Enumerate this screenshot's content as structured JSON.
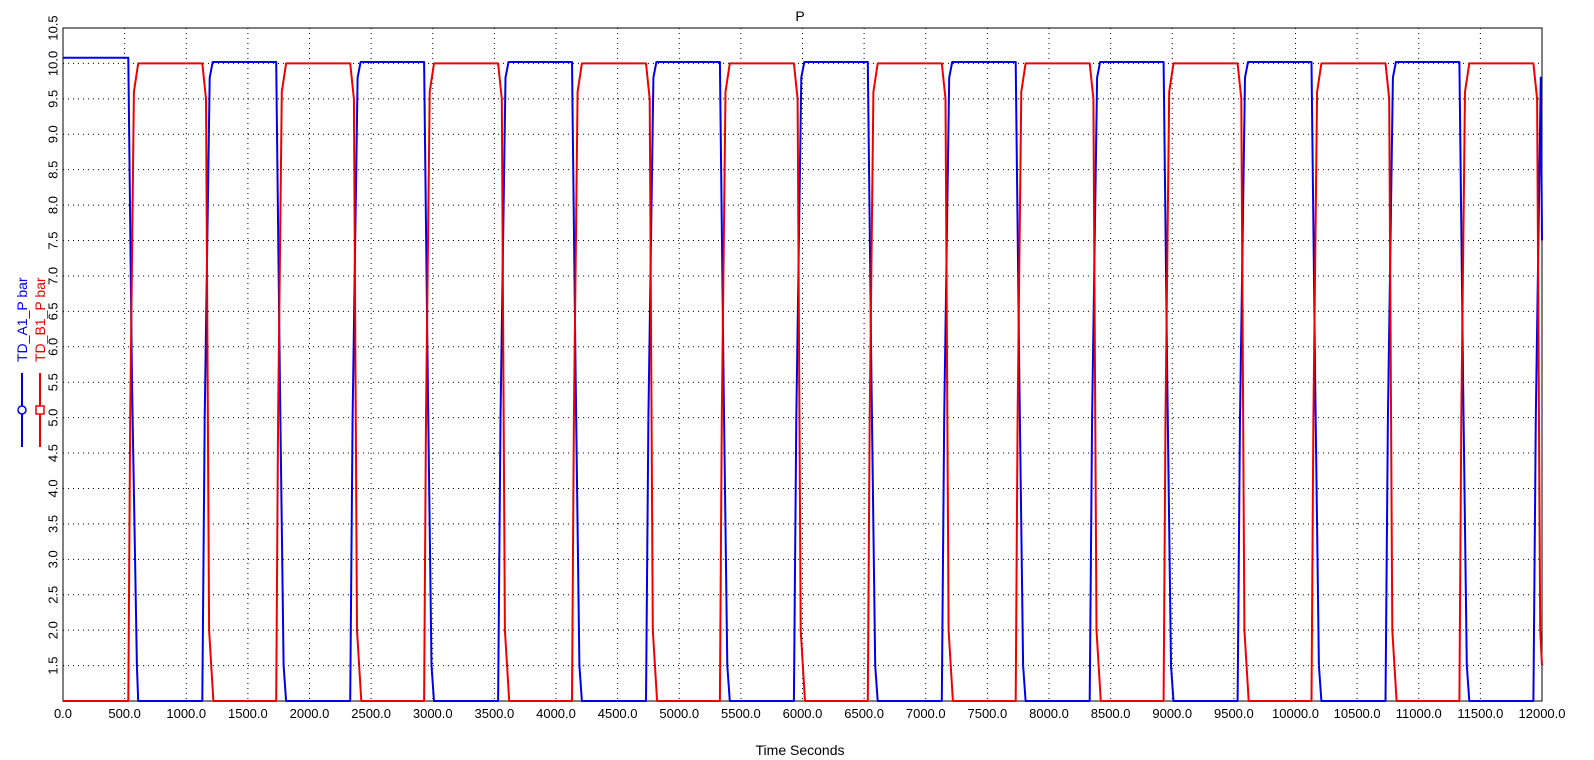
{
  "chart_data": {
    "type": "line",
    "title": "P",
    "xlabel": "Time Seconds",
    "xlim": [
      0,
      12000
    ],
    "ylim": [
      1.0,
      10.5
    ],
    "x_ticks": [
      "0.0",
      "500.0",
      "1000.0",
      "1500.0",
      "2000.0",
      "2500.0",
      "3000.0",
      "3500.0",
      "4000.0",
      "4500.0",
      "5000.0",
      "5500.0",
      "6000.0",
      "6500.0",
      "7000.0",
      "7500.0",
      "8000.0",
      "8500.0",
      "9000.0",
      "9500.0",
      "10000.0",
      "10500.0",
      "11000.0",
      "11500.0",
      "12000.0"
    ],
    "y_ticks": [
      "1.5",
      "2.0",
      "2.5",
      "3.0",
      "3.5",
      "4.0",
      "4.5",
      "5.0",
      "5.5",
      "6.0",
      "6.5",
      "7.0",
      "7.5",
      "8.0",
      "8.5",
      "9.0",
      "9.5",
      "10.0",
      "10.5"
    ],
    "grid": true,
    "legend_position": "left, rotated vertical",
    "series": [
      {
        "name": "TD_A1_P bar",
        "color": "#0000ee",
        "marker": "circle",
        "x": [
          0,
          530,
          560,
          600,
          610,
          1130,
          1150,
          1190,
          1215,
          1730,
          1760,
          1790,
          1810,
          2330,
          2350,
          2390,
          2415,
          2930,
          2960,
          2990,
          3010,
          3530,
          3550,
          3590,
          3615,
          4130,
          4160,
          4190,
          4210,
          4730,
          4750,
          4790,
          4815,
          5330,
          5360,
          5390,
          5410,
          5930,
          5950,
          5990,
          6015,
          6530,
          6560,
          6590,
          6610,
          7130,
          7150,
          7190,
          7215,
          7730,
          7760,
          7790,
          7810,
          8330,
          8350,
          8390,
          8415,
          8930,
          8960,
          8990,
          9010,
          9530,
          9550,
          9590,
          9615,
          10130,
          10160,
          10190,
          10210,
          10730,
          10750,
          10790,
          10815,
          11330,
          11360,
          11390,
          11410,
          11930,
          11950,
          11990,
          12000
        ],
        "y": [
          10.08,
          10.08,
          5.5,
          1.5,
          1.0,
          1.0,
          5.0,
          9.8,
          10.02,
          10.02,
          5.5,
          1.5,
          1.0,
          1.0,
          5.0,
          9.8,
          10.02,
          10.02,
          5.5,
          1.5,
          1.0,
          1.0,
          5.0,
          9.8,
          10.02,
          10.02,
          5.5,
          1.5,
          1.0,
          1.0,
          5.0,
          9.8,
          10.02,
          10.02,
          5.5,
          1.5,
          1.0,
          1.0,
          5.0,
          9.8,
          10.02,
          10.02,
          5.5,
          1.5,
          1.0,
          1.0,
          5.0,
          9.8,
          10.02,
          10.02,
          5.5,
          1.5,
          1.0,
          1.0,
          5.0,
          9.8,
          10.02,
          10.02,
          5.5,
          1.5,
          1.0,
          1.0,
          5.0,
          9.8,
          10.02,
          10.02,
          5.5,
          1.5,
          1.0,
          1.0,
          5.0,
          9.8,
          10.02,
          10.02,
          5.5,
          1.5,
          1.0,
          1.0,
          5.0,
          9.8,
          7.5
        ]
      },
      {
        "name": "TD_B1_P bar",
        "color": "#ee0000",
        "marker": "square",
        "x": [
          0,
          530,
          545,
          575,
          610,
          1130,
          1160,
          1185,
          1220,
          1730,
          1745,
          1775,
          1810,
          2330,
          2360,
          2385,
          2420,
          2930,
          2945,
          2975,
          3010,
          3530,
          3560,
          3585,
          3620,
          4130,
          4145,
          4175,
          4210,
          4730,
          4760,
          4785,
          4820,
          5330,
          5345,
          5375,
          5410,
          5930,
          5960,
          5985,
          6020,
          6530,
          6545,
          6575,
          6610,
          7130,
          7160,
          7185,
          7220,
          7730,
          7745,
          7775,
          7810,
          8330,
          8360,
          8385,
          8420,
          8930,
          8945,
          8975,
          9010,
          9530,
          9560,
          9585,
          9620,
          10130,
          10145,
          10175,
          10210,
          10730,
          10760,
          10785,
          10820,
          11330,
          11345,
          11375,
          11410,
          11930,
          11960,
          11985,
          12000
        ],
        "y": [
          1.0,
          1.0,
          5.0,
          9.6,
          10.0,
          10.0,
          9.5,
          2.0,
          1.0,
          1.0,
          5.0,
          9.6,
          10.0,
          10.0,
          9.5,
          2.0,
          1.0,
          1.0,
          5.0,
          9.6,
          10.0,
          10.0,
          9.5,
          2.0,
          1.0,
          1.0,
          5.0,
          9.6,
          10.0,
          10.0,
          9.5,
          2.0,
          1.0,
          1.0,
          5.0,
          9.6,
          10.0,
          10.0,
          9.5,
          2.0,
          1.0,
          1.0,
          5.0,
          9.6,
          10.0,
          10.0,
          9.5,
          2.0,
          1.0,
          1.0,
          5.0,
          9.6,
          10.0,
          10.0,
          9.5,
          2.0,
          1.0,
          1.0,
          5.0,
          9.6,
          10.0,
          10.0,
          9.5,
          2.0,
          1.0,
          1.0,
          5.0,
          9.6,
          10.0,
          10.0,
          9.5,
          2.0,
          1.0,
          1.0,
          5.0,
          9.6,
          10.0,
          10.0,
          9.5,
          2.0,
          1.5
        ]
      }
    ]
  }
}
